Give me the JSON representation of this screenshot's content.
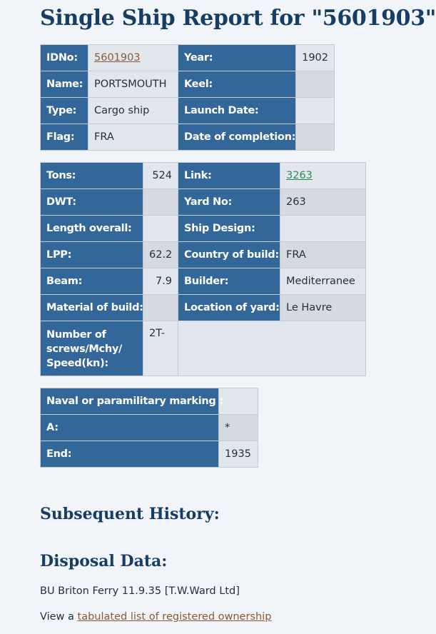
{
  "page_title": "Single Ship Report for \"5601903\"",
  "table1": {
    "idno_label": "IDNo:",
    "idno_value": "5601903",
    "year_label": "Year:",
    "year_value": "1902",
    "name_label": "Name:",
    "name_value": "PORTSMOUTH",
    "keel_label": "Keel:",
    "keel_value": "",
    "type_label": "Type:",
    "type_value": "Cargo ship",
    "launch_label": "Launch Date:",
    "launch_value": "",
    "flag_label": "Flag:",
    "flag_value": "FRA",
    "completion_label": "Date of completion:",
    "completion_value": ""
  },
  "table2": {
    "tons_label": "Tons:",
    "tons_value": "524",
    "link_label": "Link:",
    "link_value": "3263",
    "dwt_label": "DWT:",
    "dwt_value": "",
    "yard_label": "Yard No:",
    "yard_value": "263",
    "length_label": "Length overall:",
    "length_value": "",
    "design_label": "Ship Design:",
    "design_value": "",
    "lpp_label": "LPP:",
    "lpp_value": "62.2",
    "country_label": "Country of build:",
    "country_value": "FRA",
    "beam_label": "Beam:",
    "beam_value": "7.9",
    "builder_label": "Builder:",
    "builder_value": "Mediterranee",
    "material_label": "Material of build:",
    "material_value": "",
    "location_label": "Location of yard:",
    "location_value": "Le Havre",
    "screws_label_1": "Number of",
    "screws_label_2": "screws/Mchy/",
    "screws_label_3": "Speed(kn):",
    "screws_value": "2T-"
  },
  "table3": {
    "naval_label": "Naval or paramilitary marking :",
    "naval_value": "",
    "a_label": "A:",
    "a_value": "*",
    "end_label": "End:",
    "end_value": "1935"
  },
  "subsequent_history_heading": "Subsequent History:",
  "disposal_heading": "Disposal Data:",
  "disposal_text": "BU Briton Ferry 11.9.35 [T.W.Ward Ltd]",
  "ownership": {
    "prefix": "View a ",
    "link_text": "tabulated list of registered ownership"
  }
}
